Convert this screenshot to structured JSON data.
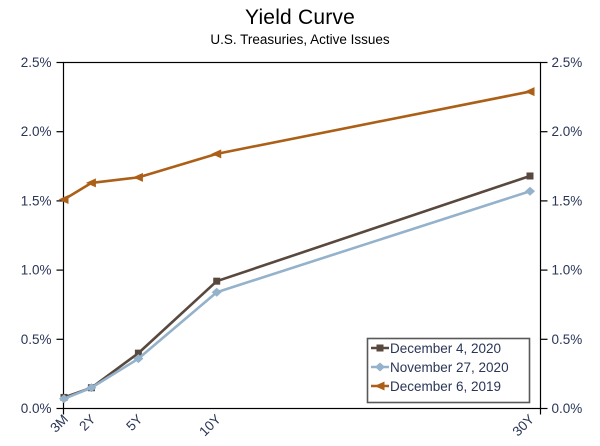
{
  "chart": {
    "title": "Yield Curve",
    "subtitle": "U.S. Treasuries, Active Issues"
  },
  "chart_data": {
    "type": "line",
    "title": "Yield Curve",
    "subtitle": "U.S. Treasuries, Active Issues",
    "categories": [
      "3M",
      "2Y",
      "5Y",
      "10Y",
      "30Y"
    ],
    "x_years": [
      0.25,
      2,
      5,
      10,
      30
    ],
    "series": [
      {
        "name": "December 4, 2020",
        "marker": "square",
        "color": "#58483e",
        "values": [
          0.08,
          0.15,
          0.4,
          0.92,
          1.68
        ]
      },
      {
        "name": "November 27, 2020",
        "marker": "diamond",
        "color": "#94b2cb",
        "values": [
          0.07,
          0.15,
          0.36,
          0.84,
          1.57
        ]
      },
      {
        "name": "December 6, 2019",
        "marker": "triangle-left",
        "color": "#ab5f17",
        "values": [
          1.51,
          1.63,
          1.67,
          1.84,
          2.29
        ]
      }
    ],
    "y_axis": {
      "min": 0,
      "max": 2.5,
      "tick_step": 0.5,
      "tick_labels": [
        "0.0%",
        "0.5%",
        "1.0%",
        "1.5%",
        "2.0%",
        "2.5%"
      ],
      "sides": [
        "left",
        "right"
      ]
    },
    "x_axis": {
      "label_rotation_deg": -45
    },
    "legend": {
      "position": "bottom-right",
      "bordered": true
    },
    "grid": false,
    "colors": {
      "text": "#2a3557",
      "axis": "#000000",
      "legend_border": "#595959",
      "background": "#ffffff"
    }
  }
}
